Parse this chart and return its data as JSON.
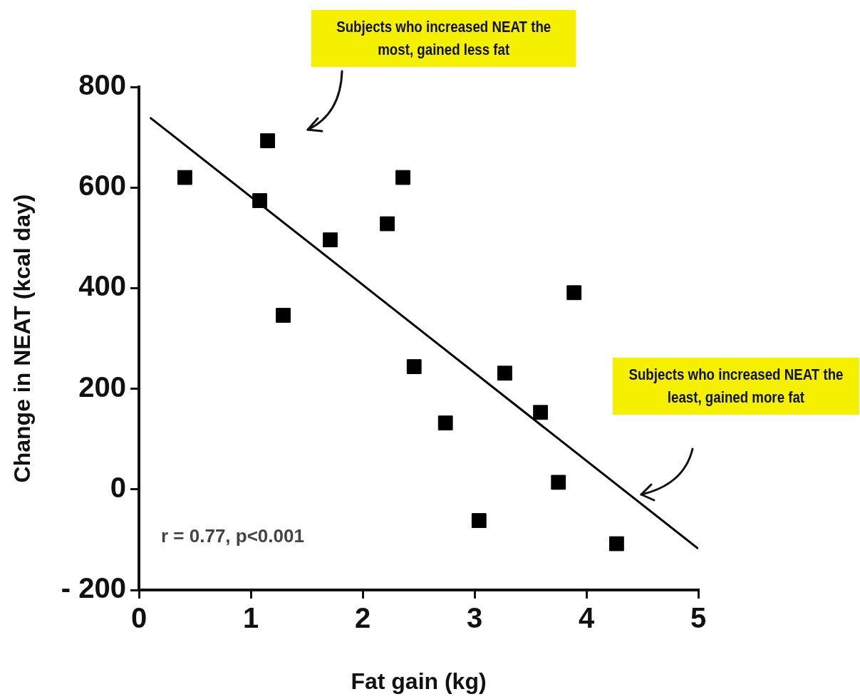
{
  "chart_data": {
    "type": "scatter",
    "xlabel": "Fat gain (kg)",
    "ylabel": "Change in NEAT (kcal day)",
    "xlim": [
      0,
      5
    ],
    "xticks": [
      0,
      1,
      2,
      3,
      4,
      5
    ],
    "ylim": [
      -200,
      800
    ],
    "yticks": [
      {
        "value": -200,
        "label": "- 200"
      },
      0,
      200,
      400,
      600,
      800
    ],
    "grid": false,
    "legend": false,
    "marker": "square",
    "series": [
      {
        "color": "#000000",
        "x": [
          0.41,
          1.15,
          1.08,
          1.71,
          1.29,
          2.22,
          2.36,
          2.46,
          2.74,
          3.04,
          3.27,
          3.59,
          3.75,
          3.89,
          4.27
        ],
        "values": [
          620,
          693,
          574,
          496,
          346,
          528,
          620,
          244,
          132,
          -62,
          231,
          153,
          14,
          391,
          -108
        ]
      },
      {
        "type": "line",
        "color": "#000000",
        "marker": "none",
        "x": [
          0.1,
          5
        ],
        "values": [
          739,
          -118
        ]
      }
    ],
    "annotations": [
      "Subjects who increased NEAT the most, gained less fat",
      "Subjects who increased NEAT the least, gained more fat",
      "r = 0.77, p<0.001"
    ]
  }
}
